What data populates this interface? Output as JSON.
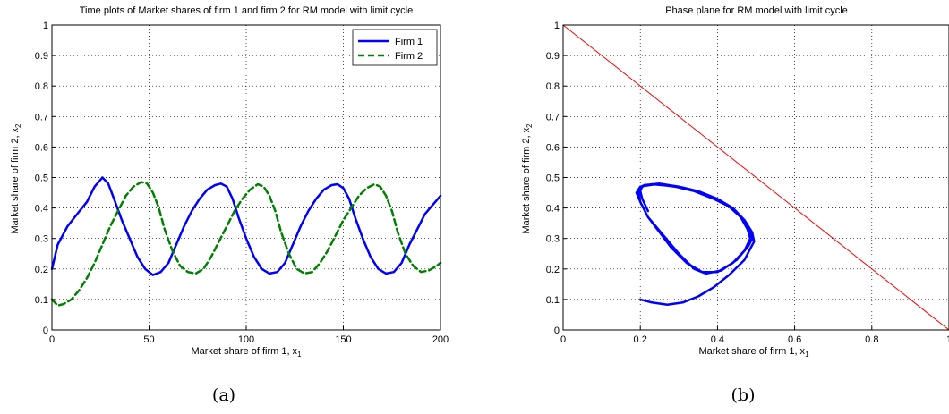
{
  "figure": {
    "label_a": "(a)",
    "label_b": "(b)"
  },
  "chart_data": [
    {
      "type": "line",
      "title": "Time plots of Market shares of firm 1 and firm 2 for RM model with limit cycle",
      "xlabel": "Market share of firm 1, x",
      "xlabel_sub": "1",
      "ylabel": "Market share of firm 2, x",
      "ylabel_sub": "2",
      "xlim": [
        0,
        200
      ],
      "ylim": [
        0,
        1
      ],
      "xticks": [
        "0",
        "50",
        "100",
        "150",
        "200"
      ],
      "yticks": [
        "0",
        "0.1",
        "0.2",
        "0.3",
        "0.4",
        "0.5",
        "0.6",
        "0.7",
        "0.8",
        "0.9",
        "1"
      ],
      "grid": true,
      "legend_position": "top-right",
      "series": [
        {
          "name": "Firm 1",
          "color": "#0000ff",
          "dash": "solid",
          "points": [
            [
              0,
              0.2
            ],
            [
              3,
              0.28
            ],
            [
              8,
              0.34
            ],
            [
              13,
              0.38
            ],
            [
              18,
              0.42
            ],
            [
              22,
              0.47
            ],
            [
              26,
              0.5
            ],
            [
              29,
              0.48
            ],
            [
              32,
              0.43
            ],
            [
              36,
              0.36
            ],
            [
              40,
              0.3
            ],
            [
              44,
              0.24
            ],
            [
              48,
              0.2
            ],
            [
              52,
              0.18
            ],
            [
              56,
              0.19
            ],
            [
              60,
              0.22
            ],
            [
              64,
              0.28
            ],
            [
              68,
              0.34
            ],
            [
              72,
              0.39
            ],
            [
              76,
              0.43
            ],
            [
              80,
              0.46
            ],
            [
              84,
              0.475
            ],
            [
              87,
              0.48
            ],
            [
              90,
              0.47
            ],
            [
              93,
              0.43
            ],
            [
              96,
              0.37
            ],
            [
              100,
              0.3
            ],
            [
              104,
              0.24
            ],
            [
              108,
              0.2
            ],
            [
              112,
              0.185
            ],
            [
              116,
              0.19
            ],
            [
              120,
              0.22
            ],
            [
              124,
              0.28
            ],
            [
              128,
              0.34
            ],
            [
              132,
              0.39
            ],
            [
              136,
              0.43
            ],
            [
              140,
              0.46
            ],
            [
              144,
              0.475
            ],
            [
              147,
              0.478
            ],
            [
              150,
              0.465
            ],
            [
              153,
              0.43
            ],
            [
              156,
              0.37
            ],
            [
              160,
              0.3
            ],
            [
              164,
              0.24
            ],
            [
              168,
              0.2
            ],
            [
              172,
              0.185
            ],
            [
              176,
              0.19
            ],
            [
              180,
              0.22
            ],
            [
              184,
              0.28
            ],
            [
              188,
              0.33
            ],
            [
              192,
              0.38
            ],
            [
              196,
              0.41
            ],
            [
              200,
              0.44
            ]
          ]
        },
        {
          "name": "Firm 2",
          "color": "#008000",
          "dash": "dashed",
          "points": [
            [
              0,
              0.1
            ],
            [
              3,
              0.08
            ],
            [
              6,
              0.085
            ],
            [
              10,
              0.1
            ],
            [
              14,
              0.13
            ],
            [
              18,
              0.17
            ],
            [
              22,
              0.22
            ],
            [
              26,
              0.28
            ],
            [
              30,
              0.34
            ],
            [
              34,
              0.39
            ],
            [
              38,
              0.44
            ],
            [
              42,
              0.47
            ],
            [
              46,
              0.485
            ],
            [
              49,
              0.48
            ],
            [
              52,
              0.45
            ],
            [
              55,
              0.4
            ],
            [
              58,
              0.33
            ],
            [
              62,
              0.26
            ],
            [
              66,
              0.21
            ],
            [
              70,
              0.19
            ],
            [
              74,
              0.185
            ],
            [
              78,
              0.2
            ],
            [
              82,
              0.24
            ],
            [
              86,
              0.29
            ],
            [
              90,
              0.34
            ],
            [
              94,
              0.39
            ],
            [
              98,
              0.43
            ],
            [
              102,
              0.46
            ],
            [
              106,
              0.478
            ],
            [
              109,
              0.47
            ],
            [
              112,
              0.44
            ],
            [
              115,
              0.39
            ],
            [
              118,
              0.32
            ],
            [
              122,
              0.25
            ],
            [
              126,
              0.2
            ],
            [
              130,
              0.185
            ],
            [
              134,
              0.19
            ],
            [
              138,
              0.22
            ],
            [
              142,
              0.26
            ],
            [
              146,
              0.31
            ],
            [
              150,
              0.36
            ],
            [
              154,
              0.4
            ],
            [
              158,
              0.44
            ],
            [
              162,
              0.465
            ],
            [
              166,
              0.478
            ],
            [
              169,
              0.47
            ],
            [
              172,
              0.44
            ],
            [
              175,
              0.39
            ],
            [
              178,
              0.32
            ],
            [
              182,
              0.25
            ],
            [
              186,
              0.21
            ],
            [
              190,
              0.19
            ],
            [
              194,
              0.195
            ],
            [
              198,
              0.21
            ],
            [
              200,
              0.22
            ]
          ]
        }
      ]
    },
    {
      "type": "line",
      "title": "Phase plane for RM model with limit cycle",
      "xlabel": "Market share of firm 1, x",
      "xlabel_sub": "1",
      "ylabel": "Market share of firm 2, x",
      "ylabel_sub": "2",
      "xlim": [
        0,
        1
      ],
      "ylim": [
        0,
        1
      ],
      "xticks": [
        "0",
        "0.2",
        "0.4",
        "0.6",
        "0.8",
        "1"
      ],
      "yticks": [
        "0",
        "0.1",
        "0.2",
        "0.3",
        "0.4",
        "0.5",
        "0.6",
        "0.7",
        "0.8",
        "0.9",
        "1"
      ],
      "grid": true,
      "series": [
        {
          "color": "#ff0000",
          "dash": "solid",
          "thin": true,
          "points": [
            [
              0,
              1
            ],
            [
              1,
              0
            ]
          ]
        },
        {
          "color": "#0000ff",
          "dash": "solid",
          "points": [
            [
              0.2,
              0.1
            ],
            [
              0.23,
              0.09
            ],
            [
              0.27,
              0.083
            ],
            [
              0.31,
              0.09
            ],
            [
              0.35,
              0.11
            ],
            [
              0.39,
              0.14
            ],
            [
              0.43,
              0.18
            ],
            [
              0.47,
              0.23
            ],
            [
              0.495,
              0.29
            ],
            [
              0.49,
              0.32
            ],
            [
              0.47,
              0.36
            ],
            [
              0.44,
              0.4
            ],
            [
              0.4,
              0.43
            ],
            [
              0.35,
              0.455
            ],
            [
              0.3,
              0.47
            ],
            [
              0.25,
              0.48
            ],
            [
              0.21,
              0.475
            ],
            [
              0.195,
              0.455
            ],
            [
              0.2,
              0.42
            ],
            [
              0.22,
              0.37
            ],
            [
              0.25,
              0.32
            ],
            [
              0.28,
              0.27
            ],
            [
              0.32,
              0.22
            ],
            [
              0.36,
              0.19
            ],
            [
              0.4,
              0.19
            ],
            [
              0.44,
              0.22
            ],
            [
              0.47,
              0.26
            ],
            [
              0.485,
              0.3
            ],
            [
              0.478,
              0.33
            ],
            [
              0.46,
              0.37
            ],
            [
              0.43,
              0.405
            ],
            [
              0.39,
              0.43
            ],
            [
              0.34,
              0.455
            ],
            [
              0.29,
              0.47
            ],
            [
              0.24,
              0.478
            ],
            [
              0.2,
              0.47
            ],
            [
              0.19,
              0.45
            ],
            [
              0.2,
              0.42
            ],
            [
              0.22,
              0.37
            ],
            [
              0.26,
              0.31
            ],
            [
              0.3,
              0.25
            ],
            [
              0.34,
              0.2
            ],
            [
              0.37,
              0.185
            ],
            [
              0.41,
              0.195
            ],
            [
              0.45,
              0.23
            ],
            [
              0.48,
              0.275
            ],
            [
              0.49,
              0.3
            ],
            [
              0.48,
              0.335
            ],
            [
              0.46,
              0.37
            ],
            [
              0.43,
              0.405
            ],
            [
              0.385,
              0.435
            ],
            [
              0.33,
              0.46
            ],
            [
              0.28,
              0.472
            ],
            [
              0.23,
              0.478
            ],
            [
              0.205,
              0.472
            ],
            [
              0.2,
              0.455
            ],
            [
              0.205,
              0.43
            ],
            [
              0.22,
              0.39
            ]
          ]
        }
      ]
    }
  ]
}
